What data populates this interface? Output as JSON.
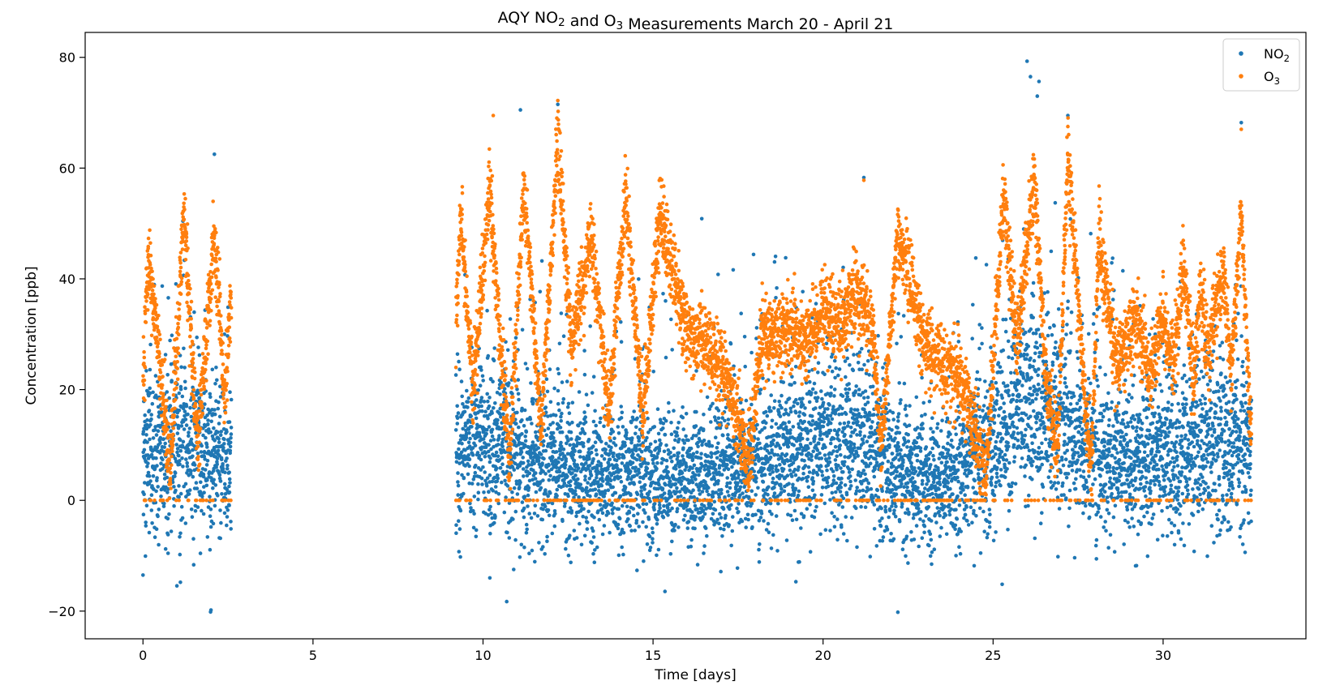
{
  "chart_data": {
    "type": "scatter",
    "title": "AQY NO₂ and O₃ Measurements March 20 - April 21",
    "xlabel": "Time [days]",
    "ylabel": "Concentration [ppb]",
    "xlim": [
      -1.7,
      34.2
    ],
    "ylim": [
      -25,
      84.5
    ],
    "xticks": [
      0,
      5,
      10,
      15,
      20,
      25,
      30
    ],
    "yticks": [
      -20,
      0,
      20,
      40,
      60,
      80
    ],
    "legend": "top-right",
    "grid": false,
    "series": [
      {
        "name": "NO₂",
        "color": "#1f77b4",
        "segments": [
          [
            0.0,
            2.6
          ],
          [
            9.2,
            32.6
          ]
        ],
        "baseline_envelope": [
          [
            0.0,
            9
          ],
          [
            0.5,
            8
          ],
          [
            1.0,
            10
          ],
          [
            1.5,
            9
          ],
          [
            2.0,
            8
          ],
          [
            2.6,
            7
          ],
          [
            9.2,
            8
          ],
          [
            10.0,
            10
          ],
          [
            11.0,
            8
          ],
          [
            12.0,
            6
          ],
          [
            13.0,
            4
          ],
          [
            14.0,
            5
          ],
          [
            15.0,
            4
          ],
          [
            16.0,
            3
          ],
          [
            17.0,
            5
          ],
          [
            18.0,
            6
          ],
          [
            19.0,
            8
          ],
          [
            20.0,
            10
          ],
          [
            21.0,
            11
          ],
          [
            22.0,
            6
          ],
          [
            23.0,
            3
          ],
          [
            24.0,
            5
          ],
          [
            25.0,
            10
          ],
          [
            26.0,
            18
          ],
          [
            27.0,
            14
          ],
          [
            28.0,
            8
          ],
          [
            29.0,
            6
          ],
          [
            30.0,
            8
          ],
          [
            31.0,
            9
          ],
          [
            32.0,
            10
          ],
          [
            32.6,
            10
          ]
        ],
        "notable_points": [
          [
            26.0,
            79.3
          ],
          [
            26.1,
            76.5
          ],
          [
            26.3,
            73.0
          ],
          [
            27.2,
            69.5
          ],
          [
            32.3,
            68.2
          ],
          [
            11.1,
            70.5
          ],
          [
            12.2,
            71.5
          ],
          [
            2.1,
            62.5
          ],
          [
            21.2,
            58.3
          ],
          [
            0.0,
            -13.5
          ],
          [
            1.1,
            -14.8
          ],
          [
            2.0,
            -19.8
          ],
          [
            22.2,
            -20.2
          ],
          [
            10.2,
            -14.0
          ],
          [
            19.2,
            -14.7
          ]
        ]
      },
      {
        "name": "O₃",
        "color": "#ff7f0e",
        "segments": [
          [
            0.0,
            2.6
          ],
          [
            9.2,
            32.6
          ]
        ],
        "envelope": [
          [
            0.0,
            22
          ],
          [
            0.15,
            44
          ],
          [
            0.5,
            25
          ],
          [
            0.8,
            5
          ],
          [
            1.2,
            52
          ],
          [
            1.6,
            10
          ],
          [
            2.1,
            47
          ],
          [
            2.4,
            18
          ],
          [
            2.6,
            38
          ],
          [
            9.2,
            30
          ],
          [
            9.35,
            52
          ],
          [
            9.7,
            20
          ],
          [
            10.2,
            57
          ],
          [
            10.5,
            28
          ],
          [
            10.8,
            8
          ],
          [
            11.2,
            58
          ],
          [
            11.7,
            12
          ],
          [
            12.2,
            64
          ],
          [
            12.6,
            28
          ],
          [
            13.2,
            48
          ],
          [
            13.7,
            15
          ],
          [
            14.2,
            55
          ],
          [
            14.7,
            15
          ],
          [
            15.2,
            52
          ],
          [
            16.0,
            30
          ],
          [
            17.0,
            25
          ],
          [
            17.5,
            15
          ],
          [
            17.8,
            6
          ],
          [
            18.2,
            30
          ],
          [
            19.0,
            30
          ],
          [
            19.5,
            28
          ],
          [
            20.0,
            35
          ],
          [
            20.5,
            32
          ],
          [
            21.0,
            38
          ],
          [
            21.5,
            30
          ],
          [
            21.7,
            8
          ],
          [
            22.2,
            48
          ],
          [
            23.0,
            28
          ],
          [
            24.0,
            22
          ],
          [
            24.8,
            5
          ],
          [
            25.3,
            55
          ],
          [
            25.7,
            28
          ],
          [
            26.2,
            58
          ],
          [
            26.6,
            18
          ],
          [
            26.9,
            8
          ],
          [
            27.2,
            63
          ],
          [
            27.7,
            18
          ],
          [
            27.9,
            6
          ],
          [
            28.1,
            48
          ],
          [
            28.6,
            25
          ],
          [
            29.2,
            32
          ],
          [
            29.6,
            22
          ],
          [
            30.0,
            33
          ],
          [
            30.3,
            25
          ],
          [
            30.6,
            43
          ],
          [
            30.9,
            22
          ],
          [
            31.1,
            38
          ],
          [
            31.3,
            27
          ],
          [
            31.8,
            42
          ],
          [
            32.0,
            22
          ],
          [
            32.3,
            52
          ],
          [
            32.5,
            22
          ],
          [
            32.6,
            12
          ]
        ],
        "notable_points": [
          [
            12.2,
            72.2
          ],
          [
            10.3,
            69.5
          ],
          [
            27.2,
            67.5
          ],
          [
            32.3,
            67.0
          ],
          [
            21.2,
            57.8
          ]
        ]
      }
    ]
  }
}
